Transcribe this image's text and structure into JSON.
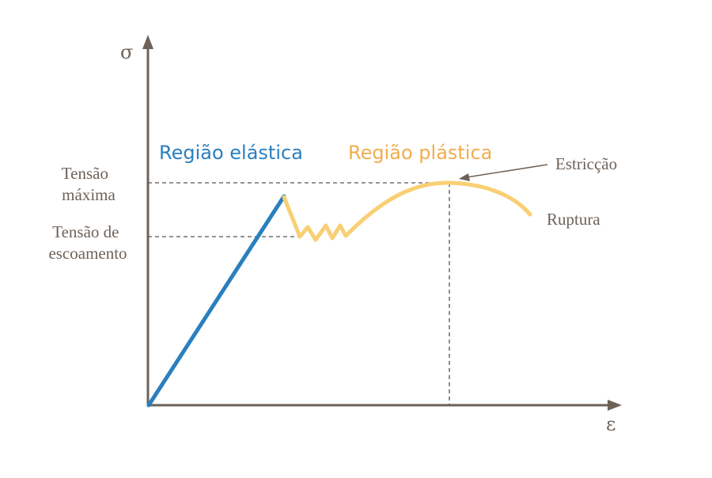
{
  "axes": {
    "y_symbol": "σ",
    "x_symbol": "ε"
  },
  "regions": {
    "elastic": "Região elástica",
    "plastic": "Região plástica"
  },
  "stress_levels": {
    "max_line1": "Tensão",
    "max_line2": "máxima",
    "yield_line1": "Tensão de",
    "yield_line2": "escoamento"
  },
  "annotations": {
    "necking": "Estricção",
    "rupture": "Ruptura"
  },
  "colors": {
    "axis": "#6e6258",
    "elastic": "#2a7fbf",
    "plastic": "#f8cf73",
    "elastic_label": "#2a7fbf",
    "plastic_label": "#f0ad4e",
    "text": "#6e6258",
    "guide": "#555555"
  }
}
